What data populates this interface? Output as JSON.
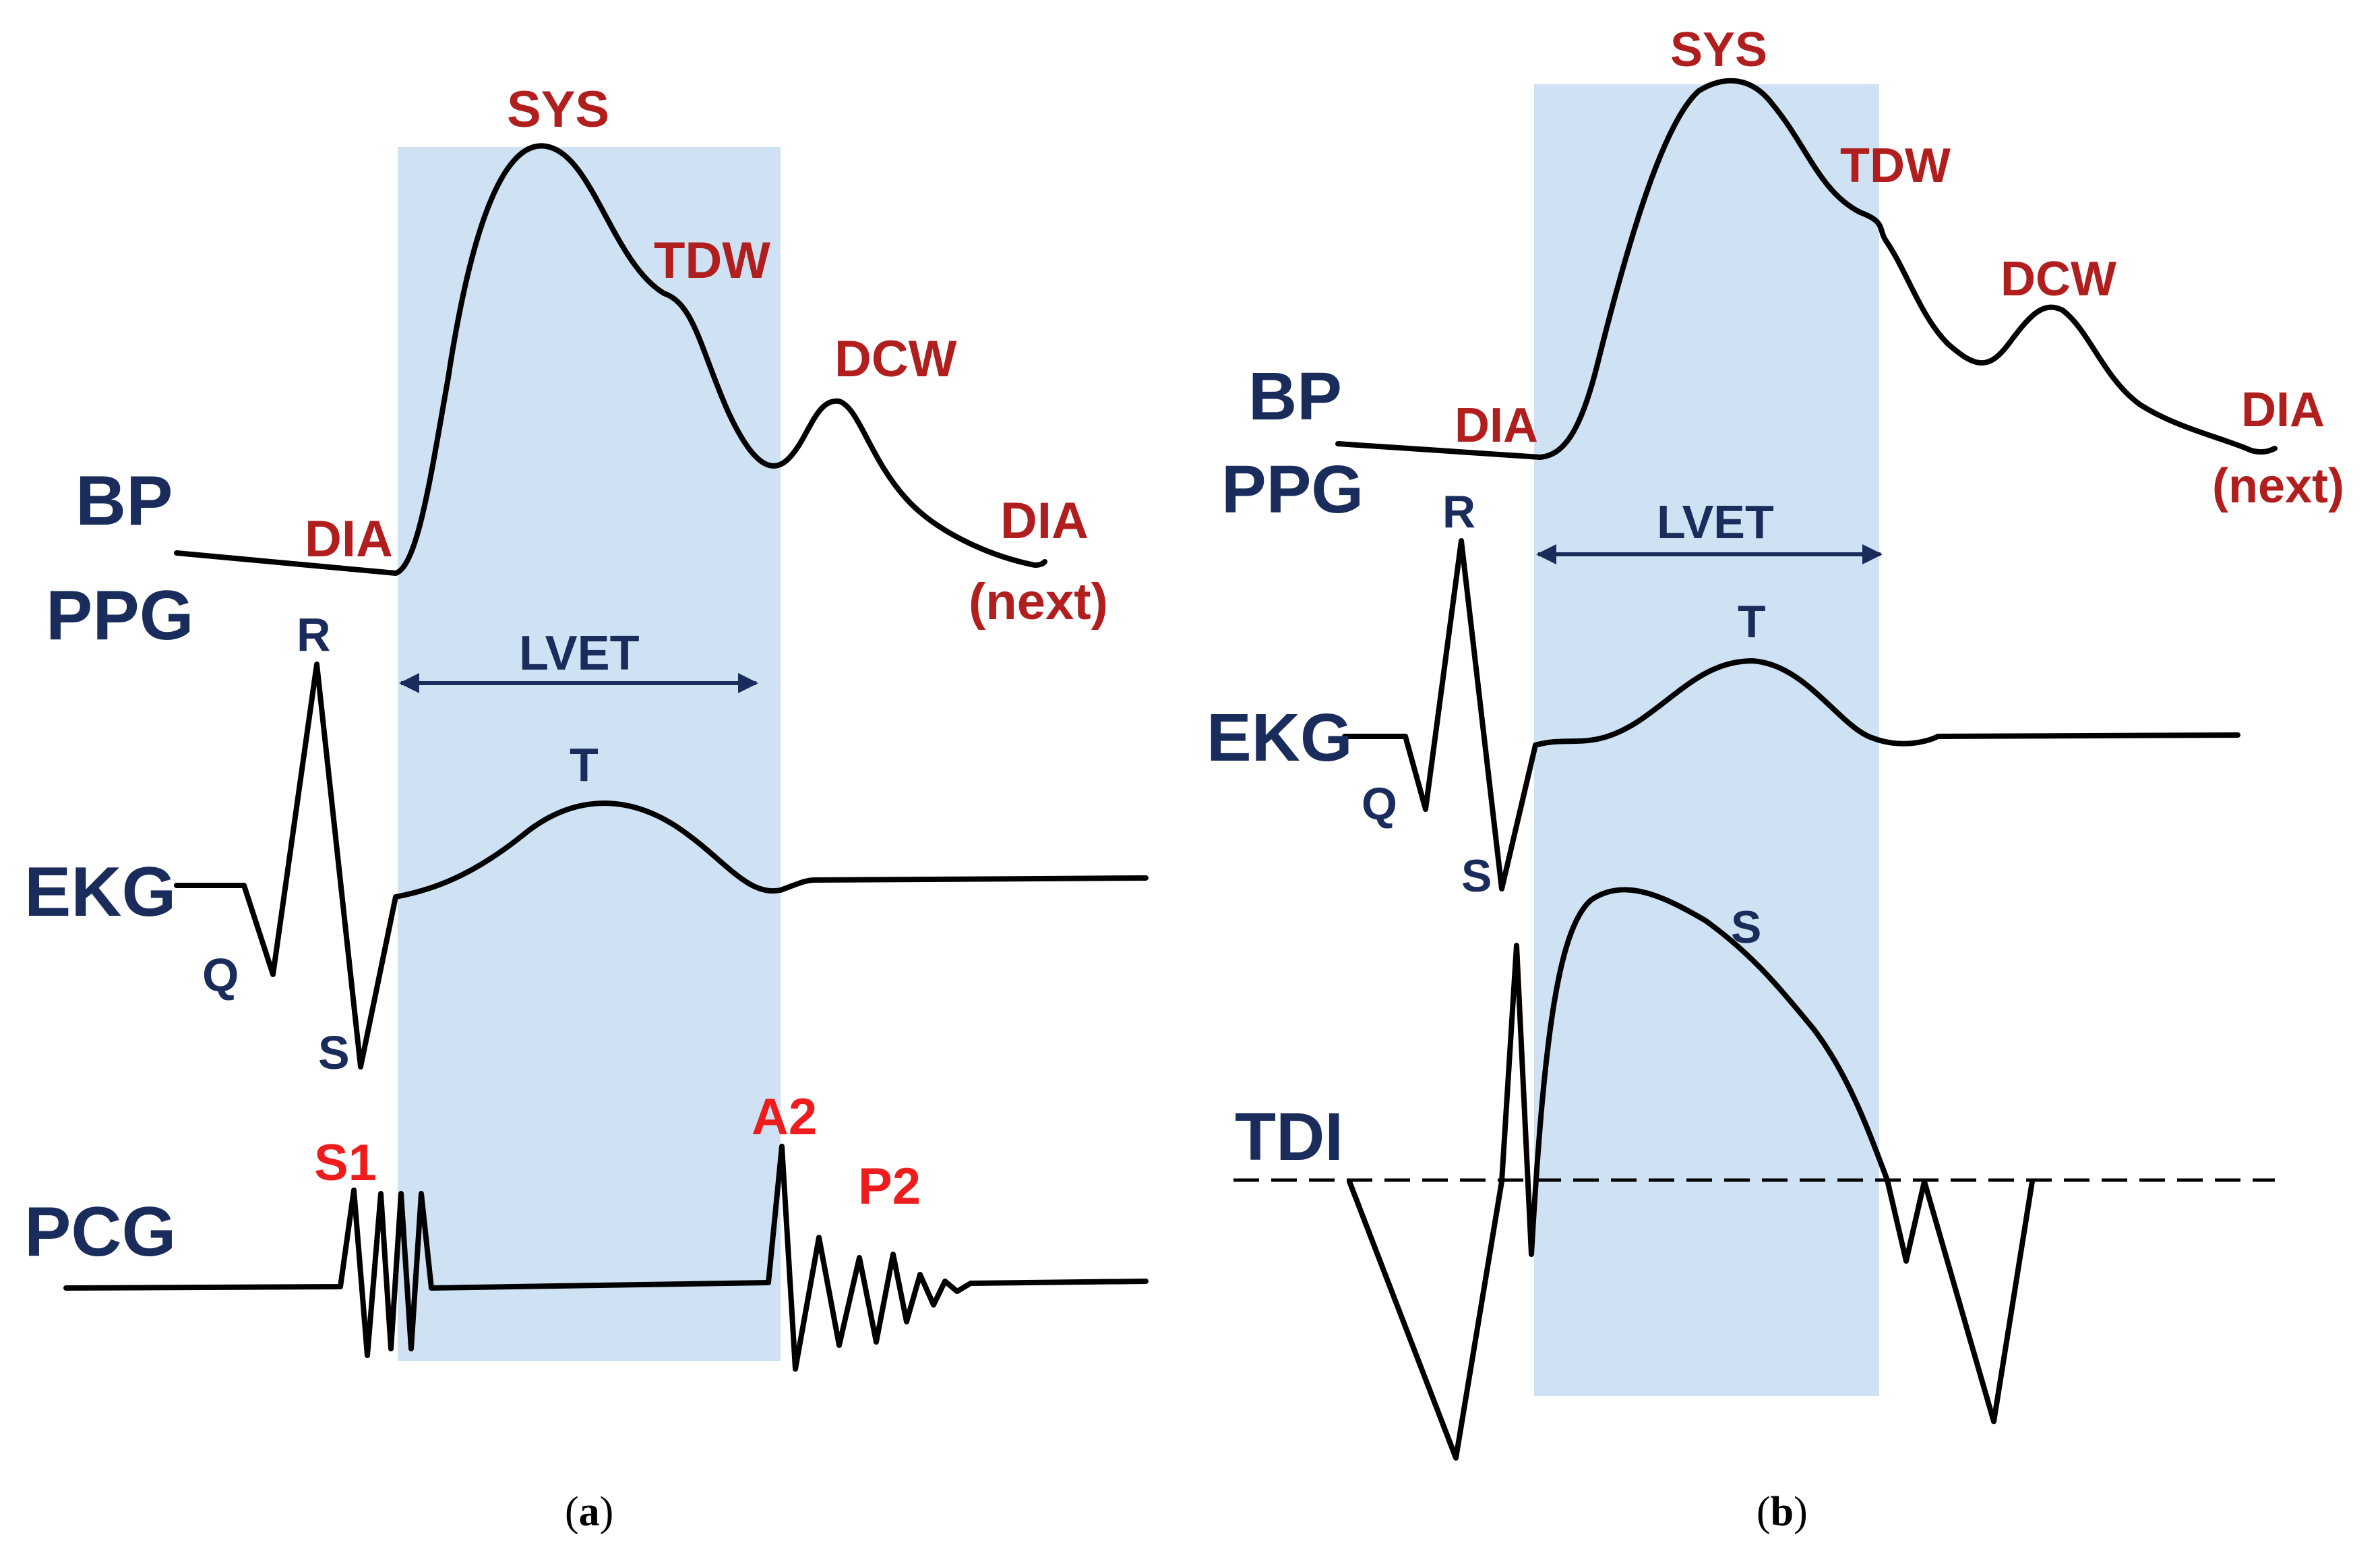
{
  "colors": {
    "band": "#cfe2f3",
    "signal_label": "#1a2c5b",
    "bp_point": "#b01e1e",
    "pcg_point": "#ee1c1c",
    "trace": "#000000"
  },
  "panel_a": {
    "caption": {
      "open": "(",
      "letter": "a",
      "close": ")"
    },
    "signals": {
      "bp": "BP",
      "ppg": "PPG",
      "ekg": "EKG",
      "pcg": "PCG"
    },
    "bp_points": {
      "sys": "SYS",
      "tdw": "TDW",
      "dcw": "DCW",
      "dia": "DIA",
      "dia_next_1": "DIA",
      "dia_next_2": "(next)"
    },
    "lvet": "LVET",
    "ekg_points": {
      "r": "R",
      "q": "Q",
      "s": "S",
      "t": "T"
    },
    "pcg_points": {
      "s1": "S1",
      "a2": "A2",
      "p2": "P2"
    }
  },
  "panel_b": {
    "caption": {
      "open": "(",
      "letter": "b",
      "close": ")"
    },
    "signals": {
      "bp": "BP",
      "ppg": "PPG",
      "ekg": "EKG",
      "tdi": "TDI"
    },
    "bp_points": {
      "sys": "SYS",
      "tdw": "TDW",
      "dcw": "DCW",
      "dia": "DIA",
      "dia_next_1": "DIA",
      "dia_next_2": "(next)"
    },
    "lvet": "LVET",
    "ekg_points": {
      "r": "R",
      "q": "Q",
      "s": "S",
      "t": "T"
    },
    "tdi_points": {
      "s": "S"
    }
  }
}
